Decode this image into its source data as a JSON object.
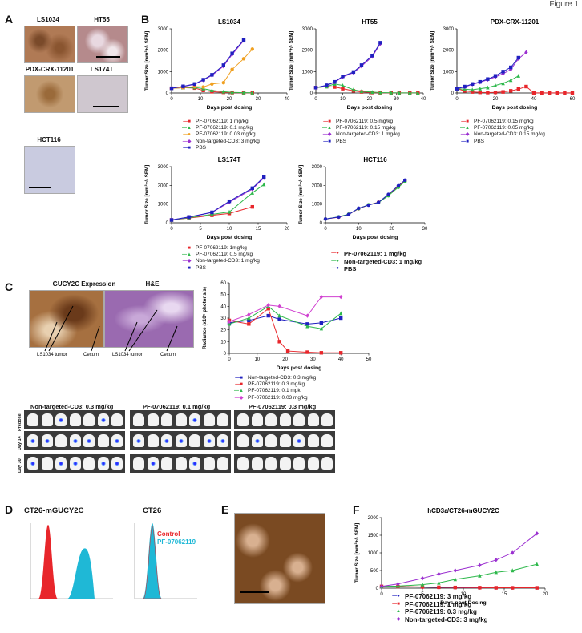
{
  "header": {
    "text": "Figure 1"
  },
  "panels": {
    "A": "A",
    "B": "B",
    "C": "C",
    "D": "D",
    "E": "E",
    "F": "F"
  },
  "panel_a": {
    "images": [
      "LS1034",
      "HT55",
      "PDX-CRX-11201",
      "LS174T",
      "HCT116"
    ]
  },
  "panel_c": {
    "image_titles": [
      "GUCY2C Expression",
      "H&E"
    ],
    "annotations": [
      "LS1034 tumor",
      "Cecum",
      "LS1034 tumor",
      "Cecum"
    ],
    "bli_titles": [
      "Non-targeted-CD3: 0.3 mg/kg",
      "PF-07062119: 0.1 mg/kg",
      "PF-07062119:  0.3 mg/kg"
    ],
    "bli_rows": [
      "Predose",
      "Day 14",
      "Day 30"
    ]
  },
  "panel_d": {
    "titles": [
      "CT26-mGUCY2C",
      "CT26"
    ],
    "legend": [
      "Control",
      "PF-07062119"
    ],
    "colors": {
      "control": "#e8262b",
      "pf": "#1fb8d6"
    }
  },
  "chart_data": [
    {
      "id": "ls1034",
      "type": "line",
      "title": "LS1034",
      "xlabel": "Days post dosing",
      "ylabel": "Tumor Size [mm³+/- SEM]",
      "xlim": [
        0,
        40
      ],
      "ylim": [
        0,
        3000
      ],
      "xticks": [
        0,
        10,
        20,
        30,
        40
      ],
      "yticks": [
        0,
        1000,
        2000,
        3000
      ],
      "series": [
        {
          "name": "PF-07062119: 1 mg/kg",
          "color": "#e8262b",
          "marker": "square",
          "x": [
            0,
            4,
            8,
            11,
            14,
            18,
            21,
            25,
            28
          ],
          "y": [
            220,
            250,
            230,
            120,
            60,
            30,
            15,
            10,
            5
          ]
        },
        {
          "name": "PF-07062119: 0.1 mg/kg",
          "color": "#2db84b",
          "marker": "triangle",
          "x": [
            0,
            4,
            8,
            11,
            14,
            18,
            21,
            25,
            28
          ],
          "y": [
            220,
            250,
            260,
            200,
            120,
            60,
            30,
            15,
            10
          ]
        },
        {
          "name": "PF-07062119: 0.03 mg/kg",
          "color": "#f0a020",
          "marker": "circle",
          "x": [
            0,
            4,
            8,
            11,
            14,
            18,
            21,
            25,
            28
          ],
          "y": [
            220,
            250,
            300,
            280,
            420,
            480,
            1100,
            1600,
            2050
          ]
        },
        {
          "name": "Non-targeted-CD3: 3 mg/kg",
          "color": "#9b30d0",
          "marker": "diamond",
          "x": [
            0,
            4,
            8,
            11,
            14,
            18,
            21,
            25
          ],
          "y": [
            220,
            300,
            400,
            600,
            820,
            1250,
            1800,
            2450
          ]
        },
        {
          "name": "PBS",
          "color": "#2020c0",
          "marker": "square",
          "x": [
            0,
            4,
            8,
            11,
            14,
            18,
            21,
            25
          ],
          "y": [
            220,
            310,
            420,
            620,
            850,
            1300,
            1850,
            2480
          ]
        }
      ]
    },
    {
      "id": "ht55",
      "type": "line",
      "title": "HT55",
      "xlabel": "Days post dosing",
      "ylabel": "Tumor Size [mm³+/- SEM]",
      "xlim": [
        0,
        40
      ],
      "ylim": [
        0,
        3000
      ],
      "xticks": [
        0,
        10,
        20,
        30,
        40
      ],
      "yticks": [
        0,
        1000,
        2000,
        3000
      ],
      "series": [
        {
          "name": "PF-07062119: 0.5 mg/kg",
          "color": "#e8262b",
          "marker": "square",
          "x": [
            0,
            4,
            7,
            10,
            14,
            17,
            21,
            24,
            28,
            31,
            35,
            38
          ],
          "y": [
            250,
            300,
            280,
            200,
            100,
            50,
            20,
            10,
            5,
            5,
            5,
            5
          ]
        },
        {
          "name": "PF-07062119: 0.15 mg/kg",
          "color": "#2db84b",
          "marker": "triangle",
          "x": [
            0,
            4,
            7,
            10,
            14,
            17,
            21,
            24,
            28,
            31,
            35,
            38
          ],
          "y": [
            250,
            300,
            420,
            350,
            150,
            80,
            40,
            20,
            10,
            5,
            5,
            5
          ]
        },
        {
          "name": "Non-targeted-CD3: 1 mg/kg",
          "color": "#9b30d0",
          "marker": "diamond",
          "x": [
            0,
            4,
            7,
            10,
            14,
            17,
            21,
            24
          ],
          "y": [
            250,
            350,
            500,
            750,
            950,
            1250,
            1700,
            2300
          ]
        },
        {
          "name": "PBS",
          "color": "#2020c0",
          "marker": "square",
          "x": [
            0,
            4,
            7,
            10,
            14,
            17,
            21,
            24
          ],
          "y": [
            250,
            360,
            520,
            780,
            980,
            1300,
            1750,
            2350
          ]
        }
      ]
    },
    {
      "id": "pdx",
      "type": "line",
      "title": "PDX-CRX-11201",
      "xlabel": "Days post dosing",
      "ylabel": "Tumor Size [mm³+/- SEM]",
      "xlim": [
        0,
        60
      ],
      "ylim": [
        0,
        3000
      ],
      "xticks": [
        0,
        20,
        40,
        60
      ],
      "yticks": [
        0,
        1000,
        2000,
        3000
      ],
      "series": [
        {
          "name": "PF-07062119: 0.15 mg/kg",
          "color": "#e8262b",
          "marker": "square",
          "x": [
            0,
            4,
            8,
            12,
            16,
            20,
            24,
            28,
            32,
            36,
            40,
            44,
            48,
            52,
            56,
            60
          ],
          "y": [
            200,
            100,
            50,
            30,
            20,
            30,
            50,
            100,
            180,
            300,
            5,
            5,
            5,
            5,
            5,
            5
          ]
        },
        {
          "name": "PF-07062119: 0.05 mg/kg",
          "color": "#2db84b",
          "marker": "triangle",
          "x": [
            0,
            4,
            8,
            12,
            16,
            20,
            24,
            28,
            32
          ],
          "y": [
            200,
            180,
            150,
            200,
            250,
            350,
            450,
            600,
            800
          ]
        },
        {
          "name": "Non-targeted-CD3: 0.15 mg/kg",
          "color": "#9b30d0",
          "marker": "diamond",
          "x": [
            0,
            4,
            8,
            12,
            16,
            20,
            24,
            28,
            32,
            36
          ],
          "y": [
            200,
            280,
            400,
            500,
            620,
            750,
            900,
            1100,
            1600,
            1900
          ]
        },
        {
          "name": "PBS",
          "color": "#2020c0",
          "marker": "square",
          "x": [
            0,
            4,
            8,
            12,
            16,
            20,
            24,
            28,
            32
          ],
          "y": [
            200,
            300,
            420,
            520,
            650,
            800,
            1000,
            1200,
            1650
          ]
        }
      ]
    },
    {
      "id": "ls174t",
      "type": "line",
      "title": "LS174T",
      "xlabel": "Days post dosing",
      "ylabel": "Tumor Size [mm³+/- SEM]",
      "xlim": [
        0,
        20
      ],
      "ylim": [
        0,
        3000
      ],
      "xticks": [
        0,
        5,
        10,
        15,
        20
      ],
      "yticks": [
        0,
        1000,
        2000,
        3000
      ],
      "series": [
        {
          "name": "PF-07062119: 1mg/kg",
          "color": "#e8262b",
          "marker": "square",
          "x": [
            0,
            3,
            7,
            10,
            14
          ],
          "y": [
            150,
            250,
            400,
            500,
            850
          ]
        },
        {
          "name": "PF-07062119: 0.5 mg/kg",
          "color": "#2db84b",
          "marker": "triangle",
          "x": [
            0,
            3,
            7,
            10,
            14,
            16
          ],
          "y": [
            150,
            270,
            450,
            580,
            1600,
            2050
          ]
        },
        {
          "name": "Non-targeted-CD3: 1 mg/kg",
          "color": "#9b30d0",
          "marker": "diamond",
          "x": [
            0,
            3,
            7,
            10,
            14,
            16
          ],
          "y": [
            150,
            300,
            550,
            1100,
            1800,
            2400
          ]
        },
        {
          "name": "PBS",
          "color": "#2020c0",
          "marker": "square",
          "x": [
            0,
            3,
            7,
            10,
            14,
            16
          ],
          "y": [
            150,
            310,
            560,
            1150,
            1850,
            2450
          ]
        }
      ]
    },
    {
      "id": "hct116",
      "type": "line",
      "title": "HCT116",
      "xlabel": "Days post dosing",
      "ylabel": "Tumor Size [mm³+/- SEM]",
      "xlim": [
        0,
        30
      ],
      "ylim": [
        0,
        3000
      ],
      "xticks": [
        0,
        10,
        20,
        30
      ],
      "yticks": [
        0,
        1000,
        2000,
        3000
      ],
      "series": [
        {
          "name": "PF-07062119: 1 mg/kg",
          "color": "#e8262b",
          "marker": "circle",
          "x": [
            0,
            4,
            7,
            10,
            13,
            16,
            19,
            22,
            24
          ],
          "y": [
            200,
            300,
            450,
            750,
            950,
            1100,
            1500,
            1950,
            2250
          ]
        },
        {
          "name": "Non-targeted-CD3: 1 mg/kg",
          "color": "#2db84b",
          "marker": "circle",
          "x": [
            0,
            4,
            7,
            10,
            13,
            16,
            19,
            22,
            24
          ],
          "y": [
            200,
            320,
            460,
            760,
            960,
            1080,
            1450,
            1900,
            2200
          ]
        },
        {
          "name": "PBS",
          "color": "#2020c0",
          "marker": "circle",
          "x": [
            0,
            4,
            7,
            10,
            13,
            16,
            19,
            22,
            24
          ],
          "y": [
            200,
            310,
            440,
            780,
            940,
            1090,
            1520,
            1980,
            2280
          ]
        }
      ]
    },
    {
      "id": "radiance",
      "type": "line",
      "title": "",
      "xlabel": "Days post dosing",
      "ylabel": "Radiance (x10⁶ photons/s)",
      "xlim": [
        0,
        50
      ],
      "ylim": [
        0,
        60
      ],
      "xticks": [
        0,
        10,
        20,
        30,
        40,
        50
      ],
      "yticks": [
        0,
        10,
        20,
        30,
        40,
        50,
        60
      ],
      "series": [
        {
          "name": "Non-targeted-CD3: 0.3 mg/kg",
          "color": "#2020c0",
          "marker": "square",
          "x": [
            0,
            7,
            14,
            18,
            28,
            33,
            40
          ],
          "y": [
            26,
            28,
            32,
            29,
            25,
            26,
            30
          ]
        },
        {
          "name": "PF-07062119: 0.3 mg/kg",
          "color": "#e8262b",
          "marker": "square",
          "x": [
            0,
            7,
            14,
            18,
            21,
            28,
            33,
            40
          ],
          "y": [
            28,
            25,
            38,
            10,
            2,
            1,
            0.5,
            0.5
          ]
        },
        {
          "name": "PF-07062119: 0.1 mpk",
          "color": "#2db84b",
          "marker": "triangle",
          "x": [
            0,
            7,
            14,
            18,
            28,
            33,
            40
          ],
          "y": [
            25,
            30,
            40,
            32,
            23,
            21,
            34
          ]
        },
        {
          "name": "PF-07062119: 0.03 mg/kg",
          "color": "#d040d0",
          "marker": "diamond",
          "x": [
            0,
            7,
            14,
            18,
            28,
            33,
            40
          ],
          "y": [
            27,
            33,
            41,
            40,
            32,
            48,
            48
          ]
        }
      ]
    },
    {
      "id": "hcd3",
      "type": "line",
      "title": "hCD3ε/CT26-mGUCY2C",
      "xlabel": "Days post Dosing",
      "ylabel": "Tumor Size [mm³+/- SEM]",
      "xlim": [
        0,
        20
      ],
      "ylim": [
        0,
        2000
      ],
      "xticks": [
        0,
        5,
        10,
        15,
        20
      ],
      "yticks": [
        0,
        500,
        1000,
        1500,
        2000
      ],
      "series": [
        {
          "name": "PF-07062119: 3 mg/kg",
          "color": "#2020c0",
          "marker": "circle",
          "x": [
            0,
            2,
            5,
            7,
            9,
            12,
            14,
            16,
            19
          ],
          "y": [
            50,
            40,
            30,
            20,
            15,
            10,
            10,
            10,
            10
          ]
        },
        {
          "name": "PF-07062119: 1 mg/kg",
          "color": "#e8262b",
          "marker": "square",
          "x": [
            0,
            2,
            5,
            7,
            9,
            12,
            14,
            16,
            19
          ],
          "y": [
            50,
            45,
            35,
            25,
            20,
            15,
            12,
            10,
            10
          ]
        },
        {
          "name": "PF-07062119: 0.3 mg/kg",
          "color": "#2db84b",
          "marker": "triangle",
          "x": [
            0,
            2,
            5,
            7,
            9,
            12,
            14,
            16,
            19
          ],
          "y": [
            50,
            60,
            100,
            150,
            250,
            350,
            450,
            500,
            680
          ]
        },
        {
          "name": "Non-targeted-CD3: 3 mg/kg",
          "color": "#9b30d0",
          "marker": "diamond",
          "x": [
            0,
            2,
            5,
            7,
            9,
            12,
            14,
            16,
            19
          ],
          "y": [
            50,
            120,
            280,
            400,
            500,
            650,
            800,
            1000,
            1550
          ]
        }
      ]
    }
  ]
}
